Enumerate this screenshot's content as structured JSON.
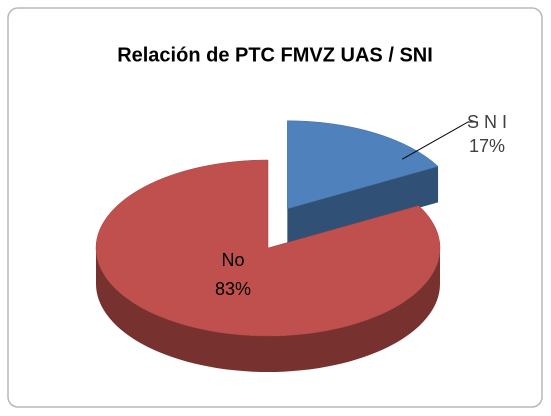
{
  "chart_data": {
    "type": "pie",
    "title": "Relación de PTC FMVZ UAS / SNI",
    "categories": [
      "S N I",
      "No"
    ],
    "values": [
      17,
      83
    ],
    "value_labels": [
      "17%",
      "83%"
    ],
    "colors": [
      "#4f81bd",
      "#c0504d"
    ]
  }
}
